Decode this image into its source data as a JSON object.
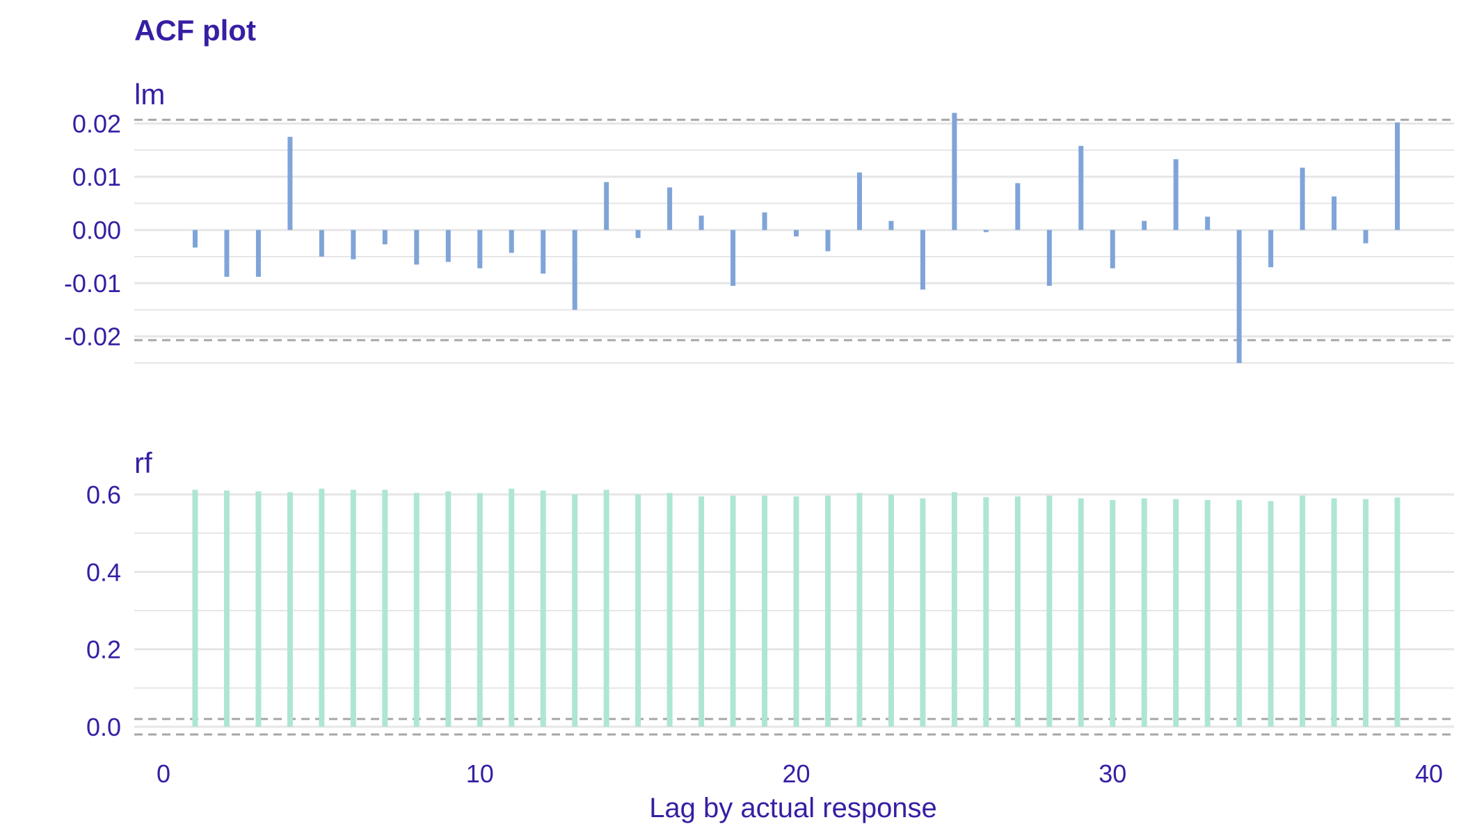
{
  "chart_data": {
    "type": "bar",
    "title": "ACF plot",
    "xlabel": "Lag by actual response",
    "xlim": [
      -0.5,
      40.5
    ],
    "xticks": [
      0,
      10,
      20,
      30,
      40
    ],
    "colors": {
      "title": "#371ea3",
      "text": "#371ea3",
      "grid": "#e6e6e6",
      "threshold": "#a6a6a6",
      "lm": "#7fa4d8",
      "rf": "#aee6d4"
    },
    "panels": [
      {
        "name": "lm",
        "color": "#7fa4d8",
        "ylim": [
          -0.025,
          0.021
        ],
        "yticks": [
          -0.02,
          -0.01,
          0.0,
          0.01,
          0.02
        ],
        "ytick_labels": [
          "-0.02",
          "-0.01",
          "0.00",
          "0.01",
          "0.02"
        ],
        "thresholds": [
          0.0207,
          -0.0207
        ],
        "lags": [
          1,
          2,
          3,
          4,
          5,
          6,
          7,
          8,
          9,
          10,
          11,
          12,
          13,
          14,
          15,
          16,
          17,
          18,
          19,
          20,
          21,
          22,
          23,
          24,
          25,
          26,
          27,
          28,
          29,
          30,
          31,
          32,
          33,
          34,
          35,
          36,
          37,
          38,
          39
        ],
        "values": [
          -0.0033,
          -0.0088,
          -0.0088,
          0.0175,
          -0.005,
          -0.0055,
          -0.0027,
          -0.0065,
          -0.006,
          -0.0072,
          -0.0043,
          -0.0082,
          -0.015,
          0.009,
          -0.0015,
          0.008,
          0.0027,
          -0.0105,
          0.0033,
          -0.0012,
          -0.004,
          0.0108,
          0.0017,
          -0.0112,
          0.022,
          -0.0004,
          0.0088,
          -0.0105,
          0.0158,
          -0.0072,
          0.0017,
          0.0133,
          0.0025,
          -0.025,
          -0.007,
          0.0117,
          0.0063,
          -0.0025,
          0.0202
        ]
      },
      {
        "name": "rf",
        "color": "#aee6d4",
        "ylim": [
          0.0,
          0.6
        ],
        "yticks": [
          0.0,
          0.2,
          0.4,
          0.6
        ],
        "ytick_labels": [
          "0.0",
          "0.2",
          "0.4",
          "0.6"
        ],
        "thresholds": [
          0.02,
          -0.02
        ],
        "lags": [
          1,
          2,
          3,
          4,
          5,
          6,
          7,
          8,
          9,
          10,
          11,
          12,
          13,
          14,
          15,
          16,
          17,
          18,
          19,
          20,
          21,
          22,
          23,
          24,
          25,
          26,
          27,
          28,
          29,
          30,
          31,
          32,
          33,
          34,
          35,
          36,
          37,
          38,
          39
        ],
        "values": [
          0.612,
          0.61,
          0.608,
          0.606,
          0.615,
          0.612,
          0.612,
          0.604,
          0.608,
          0.604,
          0.615,
          0.61,
          0.6,
          0.612,
          0.6,
          0.604,
          0.595,
          0.597,
          0.597,
          0.595,
          0.597,
          0.604,
          0.6,
          0.59,
          0.606,
          0.593,
          0.595,
          0.597,
          0.59,
          0.586,
          0.59,
          0.588,
          0.586,
          0.586,
          0.583,
          0.597,
          0.59,
          0.588,
          0.592
        ]
      }
    ]
  }
}
